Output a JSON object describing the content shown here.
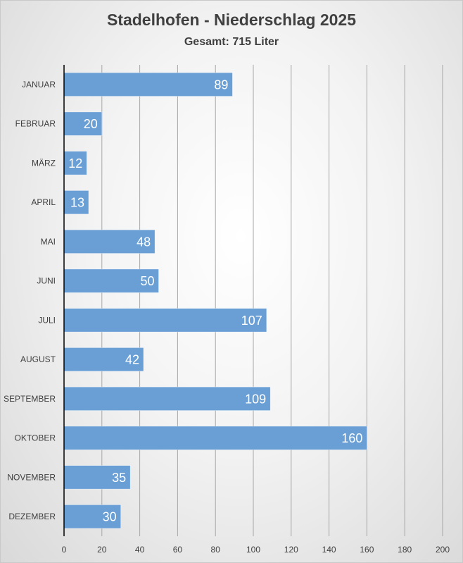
{
  "chart_data": {
    "type": "bar",
    "orientation": "horizontal",
    "title": "Stadelhofen - Niederschlag 2025",
    "subtitle": "Gesamt: 715 Liter",
    "categories": [
      "JANUAR",
      "FEBRUAR",
      "MÄRZ",
      "APRIL",
      "MAI",
      "JUNI",
      "JULI",
      "AUGUST",
      "SEPTEMBER",
      "OKTOBER",
      "NOVEMBER",
      "DEZEMBER"
    ],
    "values": [
      89,
      20,
      12,
      13,
      48,
      50,
      107,
      42,
      109,
      160,
      35,
      30
    ],
    "xlim": [
      0,
      200
    ],
    "xticks": [
      0,
      20,
      40,
      60,
      80,
      100,
      120,
      140,
      160,
      180,
      200
    ],
    "grid": true,
    "legend": "none",
    "bar_color": "#6a9fd6",
    "grid_color": "#a6a6a6",
    "axis_color": "#000000"
  }
}
